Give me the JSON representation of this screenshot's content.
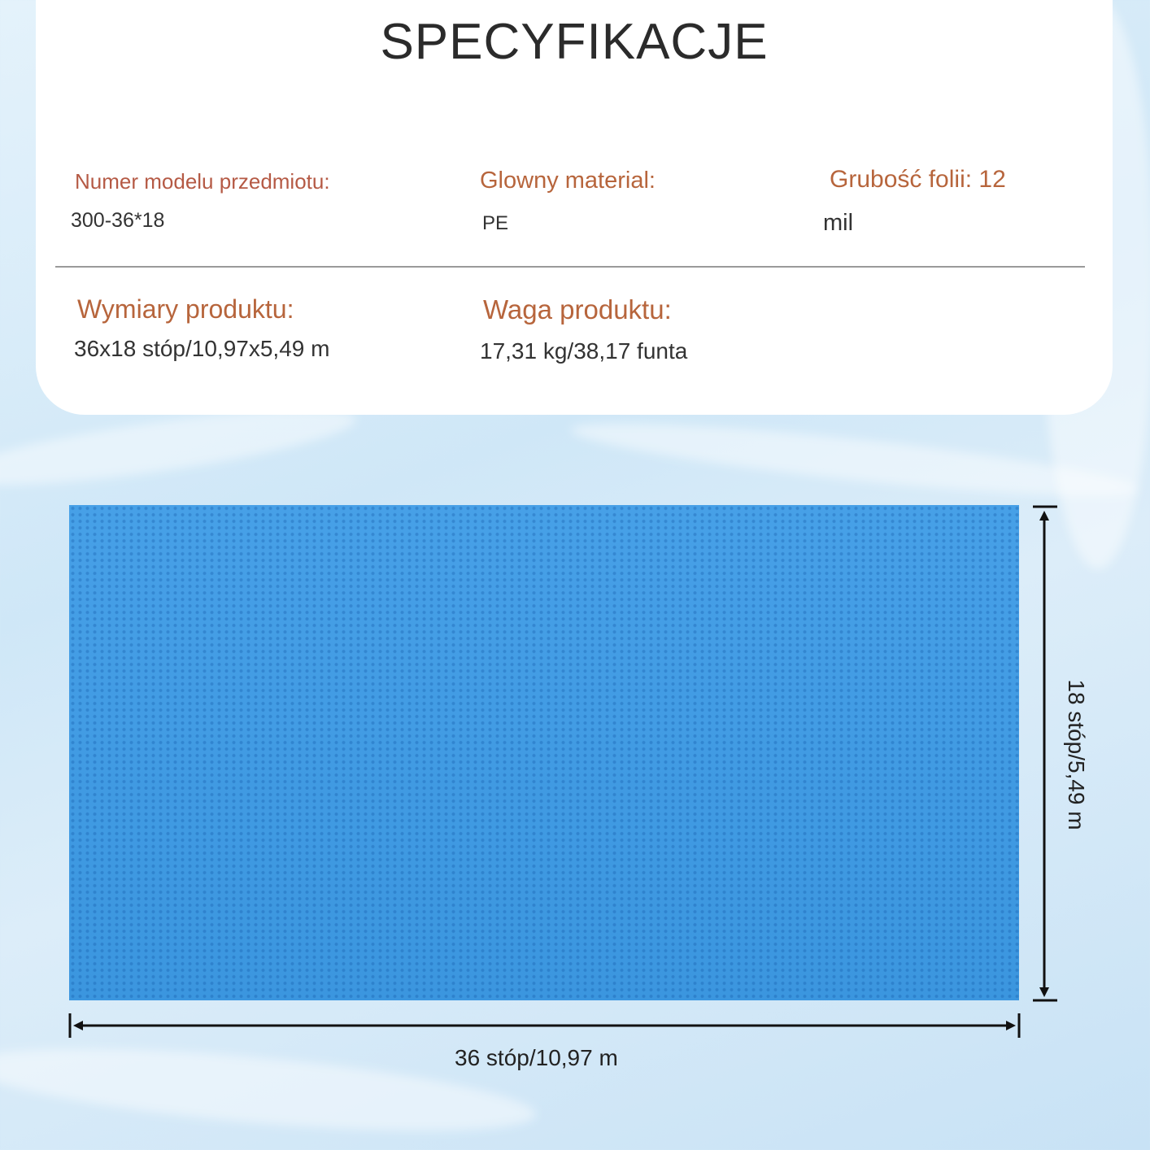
{
  "title": "SPECYFIKACJE",
  "specs": {
    "model": {
      "label": "Numer modelu przedmiotu:",
      "value": "300-36*18"
    },
    "material": {
      "label": "Glowny material:",
      "value": "PE"
    },
    "thickness": {
      "label": "Grubość folii: 12",
      "value": "mil"
    },
    "dimensions": {
      "label": "Wymiary produktu:",
      "value": "36x18 stóp/10,97x5,49 m"
    },
    "weight": {
      "label": "Waga produktu:",
      "value": "17,31 kg/38,17 funta"
    }
  },
  "diagram": {
    "width_label": "36 stóp/10,97 m",
    "height_label": "18 stóp/5,49 m",
    "cover_color": "#3d9be6"
  }
}
